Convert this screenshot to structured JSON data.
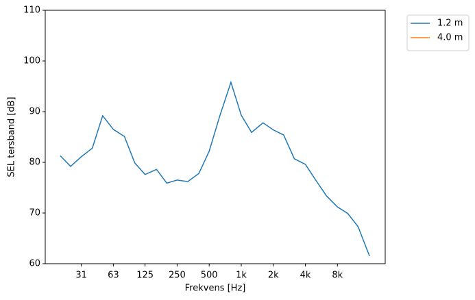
{
  "chart_data": {
    "type": "line",
    "xlabel": "Frekvens [Hz]",
    "ylabel": "SEL tersband [dB]",
    "x": [
      20,
      25,
      31.5,
      40,
      50,
      63,
      80,
      100,
      125,
      160,
      200,
      250,
      315,
      400,
      500,
      630,
      800,
      1000,
      1250,
      1600,
      2000,
      2500,
      3150,
      4000,
      5000,
      6300,
      8000,
      10000,
      12500,
      16000
    ],
    "series": [
      {
        "name": "1.2 m",
        "color": "#1f77b4",
        "values": [
          81.3,
          79.2,
          81.1,
          82.8,
          89.2,
          86.5,
          85.1,
          79.9,
          77.6,
          78.6,
          75.9,
          76.5,
          76.2,
          77.8,
          82.2,
          89.2,
          95.8,
          89.3,
          85.9,
          87.8,
          86.4,
          85.4,
          80.7,
          79.6,
          76.5,
          73.4,
          71.2,
          69.9,
          67.3,
          61.5
        ]
      },
      {
        "name": "4.0 m",
        "color": "#ff7f0e",
        "values": [
          null,
          null,
          null,
          null,
          null,
          null,
          null,
          null,
          null,
          null,
          null,
          null,
          null,
          null,
          null,
          null,
          null,
          null,
          null,
          null,
          null,
          null,
          null,
          null,
          null,
          null,
          null,
          null,
          null,
          null
        ]
      }
    ],
    "xscale": "log",
    "xlim": [
      14.45,
      22460
    ],
    "xticks": [
      {
        "value": 31.5,
        "label": "31"
      },
      63,
      125,
      250,
      500,
      {
        "value": 1000,
        "label": "1k"
      },
      {
        "value": 2000,
        "label": "2k"
      },
      {
        "value": 4000,
        "label": "4k"
      },
      {
        "value": 8000,
        "label": "8k"
      }
    ],
    "ylim": [
      60,
      110
    ],
    "yticks": [
      60,
      70,
      80,
      90,
      100,
      110
    ],
    "legend": "outside upper right"
  }
}
